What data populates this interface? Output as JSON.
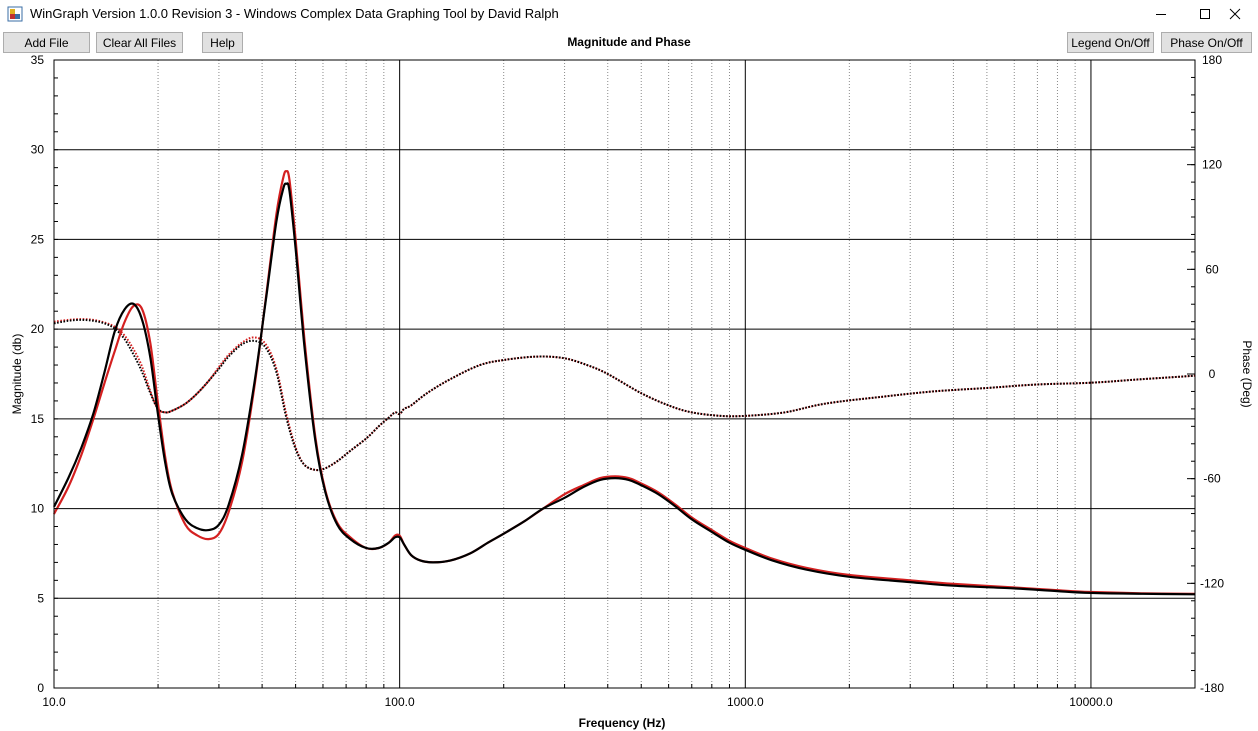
{
  "window": {
    "title": "WinGraph Version 1.0.0 Revision 3 - Windows Complex Data Graphing Tool by David Ralph"
  },
  "toolbar": {
    "add_file": "Add File",
    "clear_all": "Clear All Files",
    "help": "Help",
    "legend_toggle": "Legend On/Off",
    "phase_toggle": "Phase On/Off"
  },
  "chart_data": {
    "type": "line",
    "title": "Magnitude and Phase",
    "xlabel": "Frequency (Hz)",
    "ylabel": "Magnitude (db)",
    "y2label": "Phase (Deg)",
    "xscale": "log",
    "xlim": [
      10,
      20000
    ],
    "ylim": [
      0,
      35
    ],
    "y2lim": [
      -180,
      180
    ],
    "grid": true,
    "x_tick_labels": [
      "10.0",
      "100.0",
      "1000.0",
      "10000.0"
    ],
    "x_tick_values": [
      10,
      100,
      1000,
      10000
    ],
    "y_ticks": [
      0,
      5,
      10,
      15,
      20,
      25,
      30,
      35
    ],
    "y2_ticks": [
      -180,
      -120,
      -60,
      0,
      60,
      120,
      180
    ],
    "colors": {
      "series_a": "#d42020",
      "series_b": "#000000"
    },
    "series": [
      {
        "kind": "magnitude",
        "color": "#d42020",
        "x": [
          10,
          11,
          12,
          13,
          14,
          15,
          16,
          17,
          18,
          19,
          20,
          21,
          22,
          24,
          26,
          28,
          30,
          32,
          35,
          38,
          41,
          44,
          46,
          47,
          48,
          50,
          53,
          57,
          61,
          66,
          72,
          80,
          87,
          93,
          97,
          100,
          103,
          108,
          115,
          125,
          140,
          160,
          180,
          200,
          230,
          260,
          300,
          340,
          380,
          420,
          460,
          500,
          560,
          630,
          700,
          800,
          900,
          1000,
          1200,
          1500,
          2000,
          3000,
          4000,
          6000,
          8000,
          10000,
          14000,
          20000
        ],
        "y": [
          9.7,
          11.2,
          13.0,
          15.0,
          17.0,
          18.8,
          20.4,
          21.3,
          21.1,
          19.2,
          15.8,
          12.8,
          10.9,
          9.1,
          8.5,
          8.3,
          8.6,
          9.8,
          12.6,
          16.8,
          21.7,
          26.4,
          28.4,
          28.8,
          28.3,
          25.0,
          19.5,
          14.0,
          11.0,
          9.2,
          8.4,
          7.8,
          7.8,
          8.1,
          8.5,
          8.5,
          8.0,
          7.4,
          7.1,
          7.0,
          7.1,
          7.5,
          8.1,
          8.6,
          9.3,
          10.0,
          10.8,
          11.3,
          11.7,
          11.8,
          11.7,
          11.4,
          10.9,
          10.2,
          9.5,
          8.8,
          8.2,
          7.8,
          7.2,
          6.7,
          6.3,
          6.0,
          5.8,
          5.6,
          5.45,
          5.35,
          5.28,
          5.25
        ]
      },
      {
        "kind": "magnitude",
        "color": "#000000",
        "x": [
          10,
          11,
          12,
          13,
          14,
          15,
          16,
          17,
          18,
          19,
          20,
          21,
          22,
          24,
          26,
          28,
          30,
          32,
          35,
          38,
          41,
          44,
          46,
          47,
          48,
          50,
          53,
          57,
          61,
          66,
          72,
          80,
          87,
          93,
          97,
          100,
          103,
          108,
          115,
          125,
          140,
          160,
          180,
          200,
          230,
          260,
          300,
          340,
          380,
          420,
          460,
          500,
          560,
          630,
          700,
          800,
          900,
          1000,
          1200,
          1500,
          2000,
          3000,
          4000,
          6000,
          8000,
          10000,
          14000,
          20000
        ],
        "y": [
          10.1,
          11.7,
          13.4,
          15.3,
          17.6,
          19.9,
          21.1,
          21.4,
          20.5,
          18.4,
          15.2,
          12.5,
          10.8,
          9.4,
          8.9,
          8.8,
          9.1,
          10.2,
          13.0,
          17.0,
          21.6,
          26.0,
          27.8,
          28.1,
          27.7,
          24.5,
          19.1,
          13.8,
          10.9,
          9.1,
          8.3,
          7.8,
          7.8,
          8.1,
          8.4,
          8.4,
          8.0,
          7.4,
          7.1,
          7.0,
          7.1,
          7.5,
          8.1,
          8.6,
          9.3,
          10.0,
          10.6,
          11.2,
          11.6,
          11.7,
          11.6,
          11.3,
          10.8,
          10.1,
          9.4,
          8.7,
          8.1,
          7.7,
          7.1,
          6.6,
          6.2,
          5.9,
          5.7,
          5.55,
          5.4,
          5.3,
          5.25,
          5.22
        ]
      },
      {
        "kind": "phase",
        "color": "#d42020",
        "x": [
          10,
          11,
          12,
          13,
          14,
          15,
          16,
          17,
          18,
          19,
          20,
          21,
          22,
          24,
          26,
          28,
          30,
          32,
          35,
          38,
          41,
          44,
          47,
          50,
          53,
          57,
          61,
          66,
          72,
          80,
          87,
          93,
          97,
          100,
          103,
          108,
          120,
          140,
          170,
          200,
          250,
          300,
          350,
          400,
          500,
          600,
          700,
          850,
          1000,
          1300,
          1700,
          2500,
          3500,
          5000,
          7000,
          10000,
          14000,
          20000
        ],
        "y": [
          30,
          31,
          31.5,
          31,
          29.5,
          27,
          22,
          14,
          4,
          -10,
          -20,
          -22,
          -21,
          -17,
          -11,
          -4,
          4,
          11,
          18,
          21,
          17,
          3,
          -23,
          -42,
          -52,
          -55,
          -54,
          -50,
          -44,
          -37,
          -30,
          -25,
          -22,
          -23,
          -20,
          -18,
          -11,
          -3,
          5,
          8,
          10,
          9,
          5,
          0,
          -11,
          -18,
          -22,
          -24,
          -24,
          -22,
          -17,
          -13,
          -10,
          -8,
          -6,
          -5,
          -3,
          -1
        ]
      },
      {
        "kind": "phase",
        "color": "#000000",
        "x": [
          10,
          11,
          12,
          13,
          14,
          15,
          16,
          17,
          18,
          19,
          20,
          21,
          22,
          24,
          26,
          28,
          30,
          32,
          35,
          38,
          41,
          44,
          47,
          50,
          53,
          57,
          61,
          66,
          72,
          80,
          87,
          93,
          97,
          100,
          103,
          108,
          120,
          140,
          170,
          200,
          250,
          300,
          350,
          400,
          500,
          600,
          700,
          850,
          1000,
          1300,
          1700,
          2500,
          3500,
          5000,
          7000,
          10000,
          14000,
          20000
        ],
        "y": [
          29,
          30.5,
          31,
          30.5,
          29,
          26,
          20,
          11,
          1,
          -11,
          -20,
          -22,
          -21,
          -17,
          -11,
          -4,
          3,
          10,
          17,
          19,
          15,
          1,
          -25,
          -43,
          -52,
          -55,
          -54,
          -50,
          -44,
          -37,
          -30,
          -25,
          -22,
          -23,
          -20,
          -18,
          -11,
          -3,
          5,
          8,
          10,
          9,
          5,
          0,
          -11,
          -18,
          -22,
          -24,
          -24,
          -22,
          -17,
          -13,
          -10,
          -8,
          -6,
          -5,
          -3,
          -1
        ]
      }
    ]
  }
}
